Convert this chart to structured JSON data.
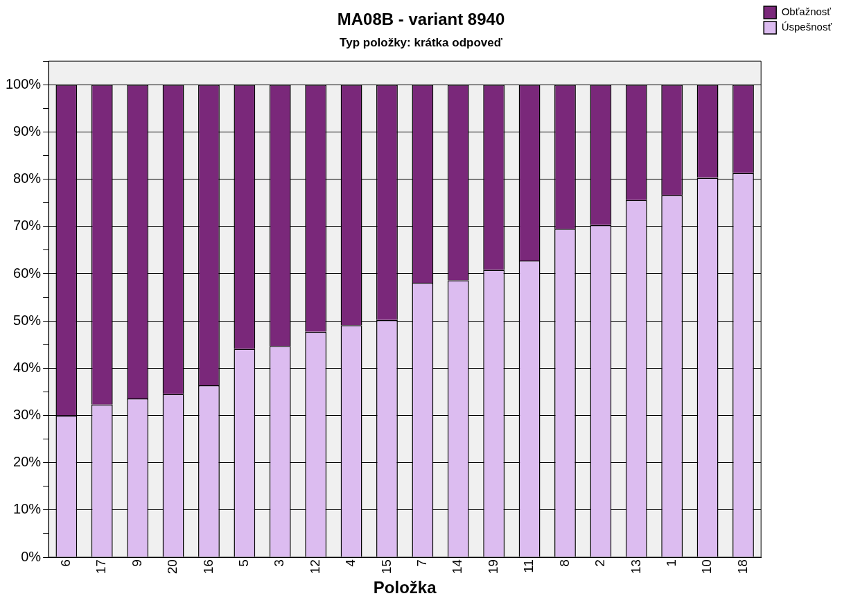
{
  "chart_data": {
    "type": "bar",
    "title": "MA08B - variant 8940",
    "subtitle": "Typ položky: krátka odpoveď",
    "xlabel": "Položka",
    "categories": [
      "6",
      "17",
      "9",
      "20",
      "16",
      "5",
      "3",
      "12",
      "4",
      "15",
      "7",
      "14",
      "19",
      "11",
      "8",
      "2",
      "13",
      "1",
      "10",
      "18"
    ],
    "stacked": true,
    "series": [
      {
        "name": "Úspešnosť",
        "color": "#dcbcf0",
        "values": [
          30.0,
          32.3,
          33.6,
          34.5,
          36.4,
          44.1,
          44.7,
          47.7,
          49.1,
          50.2,
          58.1,
          58.6,
          60.8,
          62.8,
          69.5,
          70.3,
          75.6,
          76.6,
          80.3,
          81.3
        ]
      },
      {
        "name": "Obťažnosť",
        "color": "#7a287a",
        "values": [
          70.0,
          67.7,
          66.4,
          65.5,
          63.6,
          55.9,
          55.3,
          52.3,
          50.9,
          49.8,
          41.9,
          41.4,
          39.2,
          37.2,
          30.5,
          29.7,
          24.4,
          23.4,
          19.7,
          18.7
        ]
      }
    ],
    "ylim": [
      0,
      105
    ],
    "yticks": [
      {
        "value": 0,
        "label": "0%"
      },
      {
        "value": 5,
        "label": null
      },
      {
        "value": 10,
        "label": "10%"
      },
      {
        "value": 15,
        "label": null
      },
      {
        "value": 20,
        "label": "20%"
      },
      {
        "value": 25,
        "label": null
      },
      {
        "value": 30,
        "label": "30%"
      },
      {
        "value": 35,
        "label": null
      },
      {
        "value": 40,
        "label": "40%"
      },
      {
        "value": 45,
        "label": null
      },
      {
        "value": 50,
        "label": "50%"
      },
      {
        "value": 55,
        "label": null
      },
      {
        "value": 60,
        "label": "60%"
      },
      {
        "value": 65,
        "label": null
      },
      {
        "value": 70,
        "label": "70%"
      },
      {
        "value": 75,
        "label": null
      },
      {
        "value": 80,
        "label": "80%"
      },
      {
        "value": 85,
        "label": null
      },
      {
        "value": 90,
        "label": "90%"
      },
      {
        "value": 95,
        "label": null
      },
      {
        "value": 100,
        "label": "100%"
      },
      {
        "value": 105,
        "label": null
      }
    ],
    "grid": "y",
    "legend": "top right"
  }
}
